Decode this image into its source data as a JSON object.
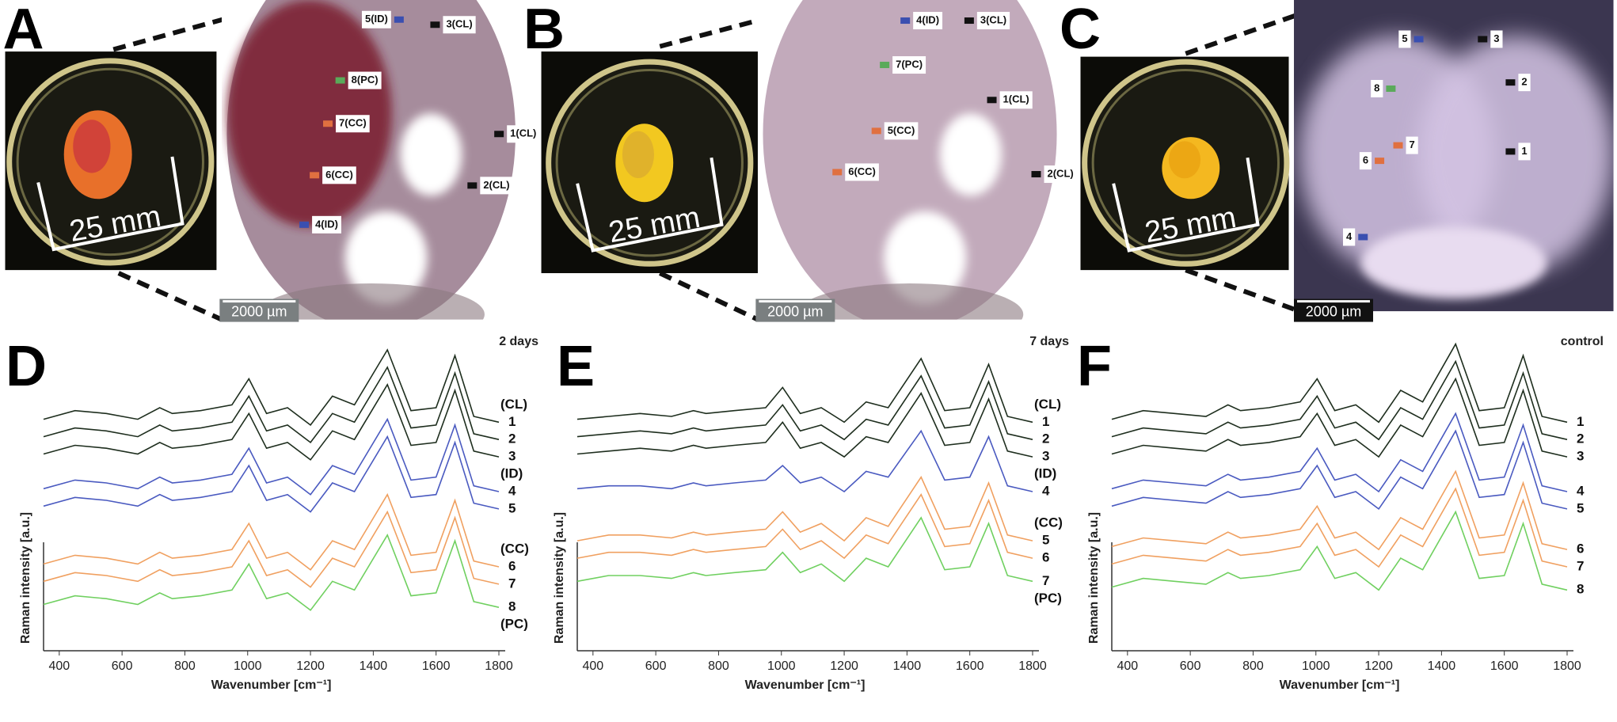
{
  "photos": [
    {
      "letter": "A",
      "dish_label": "25 mm",
      "scale_bar": "2000 µm",
      "markers": [
        {
          "label": "5(ID)",
          "color": "#3a4fb0"
        },
        {
          "label": "3(CL)",
          "color": "#111111"
        },
        {
          "label": "8(PC)",
          "color": "#5aaa5a"
        },
        {
          "label": "7(CC)",
          "color": "#e07040"
        },
        {
          "label": "1(CL)",
          "color": "#111111"
        },
        {
          "label": "6(CC)",
          "color": "#e07040"
        },
        {
          "label": "2(CL)",
          "color": "#111111"
        },
        {
          "label": "4(ID)",
          "color": "#3a4fb0"
        }
      ]
    },
    {
      "letter": "B",
      "dish_label": "25 mm",
      "scale_bar": "2000 µm",
      "markers": [
        {
          "label": "4(ID)",
          "color": "#3a4fb0"
        },
        {
          "label": "3(CL)",
          "color": "#111111"
        },
        {
          "label": "7(PC)",
          "color": "#5aaa5a"
        },
        {
          "label": "1(CL)",
          "color": "#111111"
        },
        {
          "label": "5(CC)",
          "color": "#e07040"
        },
        {
          "label": "6(CC)",
          "color": "#e07040"
        },
        {
          "label": "2(CL)",
          "color": "#111111"
        }
      ]
    },
    {
      "letter": "C",
      "dish_label": "25 mm",
      "scale_bar": "2000 µm",
      "markers": [
        {
          "label": "5",
          "color": "#3a4fb0"
        },
        {
          "label": "3",
          "color": "#111111"
        },
        {
          "label": "8",
          "color": "#5aaa5a"
        },
        {
          "label": "2",
          "color": "#111111"
        },
        {
          "label": "7",
          "color": "#e07040"
        },
        {
          "label": "6",
          "color": "#e07040"
        },
        {
          "label": "1",
          "color": "#111111"
        },
        {
          "label": "4",
          "color": "#3a4fb0"
        }
      ]
    }
  ],
  "chart_data": [
    {
      "type": "line",
      "letter": "D",
      "title": "2 days",
      "x_label": "Wavenumber [cm⁻¹]",
      "y_label": "Raman intensity [a.u.]",
      "x": [
        350,
        450,
        550,
        650,
        720,
        760,
        850,
        950,
        1004,
        1060,
        1127,
        1200,
        1270,
        1340,
        1445,
        1520,
        1600,
        1660,
        1720,
        1800
      ],
      "xlim": [
        350,
        1800
      ],
      "xticks": [
        400,
        600,
        800,
        1000,
        1200,
        1400,
        1600,
        1800
      ],
      "ylim": [
        0,
        110
      ],
      "groups": [
        {
          "label": "(CL)",
          "color": "#1e2e1e",
          "series": [
            {
              "name": "1",
              "values": [
                80,
                83,
                82,
                80,
                84,
                82,
                83,
                85,
                94,
                82,
                84,
                78,
                88,
                85,
                104,
                83,
                84,
                102,
                81,
                79
              ]
            },
            {
              "name": "2",
              "values": [
                74,
                77,
                76,
                74,
                78,
                76,
                77,
                79,
                88,
                76,
                78,
                72,
                82,
                79,
                98,
                77,
                78,
                96,
                75,
                73
              ]
            },
            {
              "name": "3",
              "values": [
                68,
                71,
                70,
                68,
                72,
                70,
                71,
                73,
                82,
                70,
                72,
                66,
                76,
                73,
                92,
                71,
                72,
                90,
                69,
                67
              ]
            }
          ]
        },
        {
          "label": "(ID)",
          "color": "#4a5ac0",
          "series": [
            {
              "name": "4",
              "values": [
                56,
                59,
                58,
                56,
                60,
                58,
                59,
                61,
                70,
                58,
                60,
                54,
                64,
                61,
                80,
                59,
                60,
                78,
                57,
                55
              ]
            },
            {
              "name": "5",
              "values": [
                50,
                53,
                52,
                50,
                54,
                52,
                53,
                55,
                64,
                52,
                54,
                48,
                58,
                55,
                74,
                53,
                54,
                72,
                51,
                49
              ]
            }
          ]
        },
        {
          "label": "(CC)",
          "color": "#f0a060",
          "series": [
            {
              "name": "6",
              "values": [
                30,
                33,
                32,
                30,
                34,
                32,
                33,
                35,
                44,
                32,
                34,
                28,
                38,
                35,
                54,
                33,
                34,
                52,
                31,
                29
              ]
            },
            {
              "name": "7",
              "values": [
                24,
                27,
                26,
                24,
                28,
                26,
                27,
                29,
                38,
                26,
                28,
                22,
                32,
                29,
                48,
                27,
                28,
                46,
                25,
                23
              ]
            }
          ]
        },
        {
          "label": "(PC)",
          "color": "#70d060",
          "series": [
            {
              "name": "8",
              "values": [
                16,
                19,
                18,
                16,
                20,
                18,
                19,
                21,
                30,
                18,
                20,
                14,
                24,
                21,
                40,
                19,
                20,
                38,
                17,
                15
              ]
            }
          ]
        }
      ]
    },
    {
      "type": "line",
      "letter": "E",
      "title": "7 days",
      "x_label": "Wavenumber [cm⁻¹]",
      "y_label": "Raman intensity [a.u.]",
      "x": [
        350,
        450,
        550,
        650,
        720,
        760,
        850,
        950,
        1004,
        1060,
        1127,
        1200,
        1270,
        1340,
        1445,
        1520,
        1600,
        1660,
        1720,
        1800
      ],
      "xlim": [
        350,
        1800
      ],
      "xticks": [
        400,
        600,
        800,
        1000,
        1200,
        1400,
        1600,
        1800
      ],
      "ylim": [
        0,
        110
      ],
      "groups": [
        {
          "label": "(CL)",
          "color": "#1e2e1e",
          "series": [
            {
              "name": "1",
              "values": [
                80,
                81,
                82,
                81,
                83,
                82,
                83,
                84,
                91,
                82,
                84,
                79,
                86,
                84,
                101,
                83,
                84,
                99,
                81,
                79
              ]
            },
            {
              "name": "2",
              "values": [
                74,
                75,
                76,
                75,
                77,
                76,
                77,
                78,
                85,
                76,
                78,
                73,
                80,
                78,
                95,
                77,
                78,
                93,
                75,
                73
              ]
            },
            {
              "name": "3",
              "values": [
                68,
                69,
                70,
                69,
                71,
                70,
                71,
                72,
                79,
                70,
                72,
                67,
                74,
                72,
                89,
                71,
                72,
                87,
                69,
                67
              ]
            }
          ]
        },
        {
          "label": "(ID)",
          "color": "#4a5ac0",
          "series": [
            {
              "name": "4",
              "values": [
                56,
                57,
                57,
                56,
                58,
                57,
                58,
                59,
                64,
                58,
                60,
                55,
                62,
                60,
                76,
                59,
                60,
                74,
                57,
                55
              ]
            }
          ]
        },
        {
          "label": "(CC)",
          "color": "#f0a060",
          "series": [
            {
              "name": "5",
              "values": [
                38,
                40,
                40,
                39,
                41,
                40,
                41,
                42,
                48,
                41,
                44,
                38,
                46,
                43,
                60,
                42,
                43,
                58,
                40,
                38
              ]
            },
            {
              "name": "6",
              "values": [
                32,
                34,
                34,
                33,
                35,
                34,
                35,
                36,
                42,
                35,
                38,
                32,
                40,
                37,
                54,
                36,
                37,
                52,
                34,
                32
              ]
            }
          ]
        },
        {
          "label": "(PC)",
          "color": "#70d060",
          "series": [
            {
              "name": "7",
              "values": [
                24,
                26,
                26,
                25,
                27,
                26,
                27,
                28,
                34,
                27,
                30,
                24,
                32,
                29,
                46,
                28,
                29,
                44,
                26,
                24
              ]
            }
          ]
        }
      ]
    },
    {
      "type": "line",
      "letter": "F",
      "title": "control",
      "x_label": "Wavenumber [cm⁻¹]",
      "y_label": "Raman intensity [a.u.]",
      "x": [
        350,
        450,
        550,
        650,
        720,
        760,
        850,
        950,
        1004,
        1060,
        1127,
        1200,
        1270,
        1340,
        1445,
        1520,
        1600,
        1660,
        1720,
        1800
      ],
      "xlim": [
        350,
        1800
      ],
      "xticks": [
        400,
        600,
        800,
        1000,
        1200,
        1400,
        1600,
        1800
      ],
      "ylim": [
        0,
        110
      ],
      "groups": [
        {
          "color": "#1e2e1e",
          "series": [
            {
              "name": "1",
              "values": [
                80,
                83,
                82,
                81,
                85,
                83,
                84,
                86,
                94,
                83,
                85,
                79,
                90,
                86,
                106,
                83,
                84,
                102,
                81,
                79
              ]
            },
            {
              "name": "2",
              "values": [
                74,
                77,
                76,
                75,
                79,
                77,
                78,
                80,
                88,
                77,
                79,
                73,
                84,
                80,
                100,
                77,
                78,
                96,
                75,
                73
              ]
            },
            {
              "name": "3",
              "values": [
                68,
                71,
                70,
                69,
                73,
                71,
                72,
                74,
                82,
                71,
                73,
                67,
                78,
                74,
                94,
                71,
                72,
                90,
                69,
                67
              ]
            }
          ]
        },
        {
          "color": "#4a5ac0",
          "series": [
            {
              "name": "4",
              "values": [
                56,
                59,
                58,
                57,
                61,
                59,
                60,
                62,
                70,
                59,
                61,
                55,
                66,
                62,
                82,
                59,
                60,
                78,
                57,
                55
              ]
            },
            {
              "name": "5",
              "values": [
                50,
                53,
                52,
                51,
                55,
                53,
                54,
                56,
                64,
                53,
                55,
                49,
                60,
                56,
                76,
                53,
                54,
                72,
                51,
                49
              ]
            }
          ]
        },
        {
          "color": "#f0a060",
          "series": [
            {
              "name": "6",
              "values": [
                36,
                39,
                38,
                37,
                41,
                39,
                40,
                42,
                50,
                39,
                41,
                35,
                46,
                42,
                62,
                39,
                40,
                58,
                37,
                35
              ]
            },
            {
              "name": "7",
              "values": [
                30,
                33,
                32,
                31,
                35,
                33,
                34,
                36,
                44,
                33,
                35,
                29,
                40,
                36,
                56,
                33,
                34,
                52,
                31,
                29
              ]
            }
          ]
        },
        {
          "color": "#70d060",
          "series": [
            {
              "name": "8",
              "values": [
                22,
                25,
                24,
                23,
                27,
                25,
                26,
                28,
                36,
                25,
                27,
                21,
                32,
                28,
                48,
                25,
                26,
                44,
                23,
                21
              ]
            }
          ]
        }
      ]
    }
  ]
}
